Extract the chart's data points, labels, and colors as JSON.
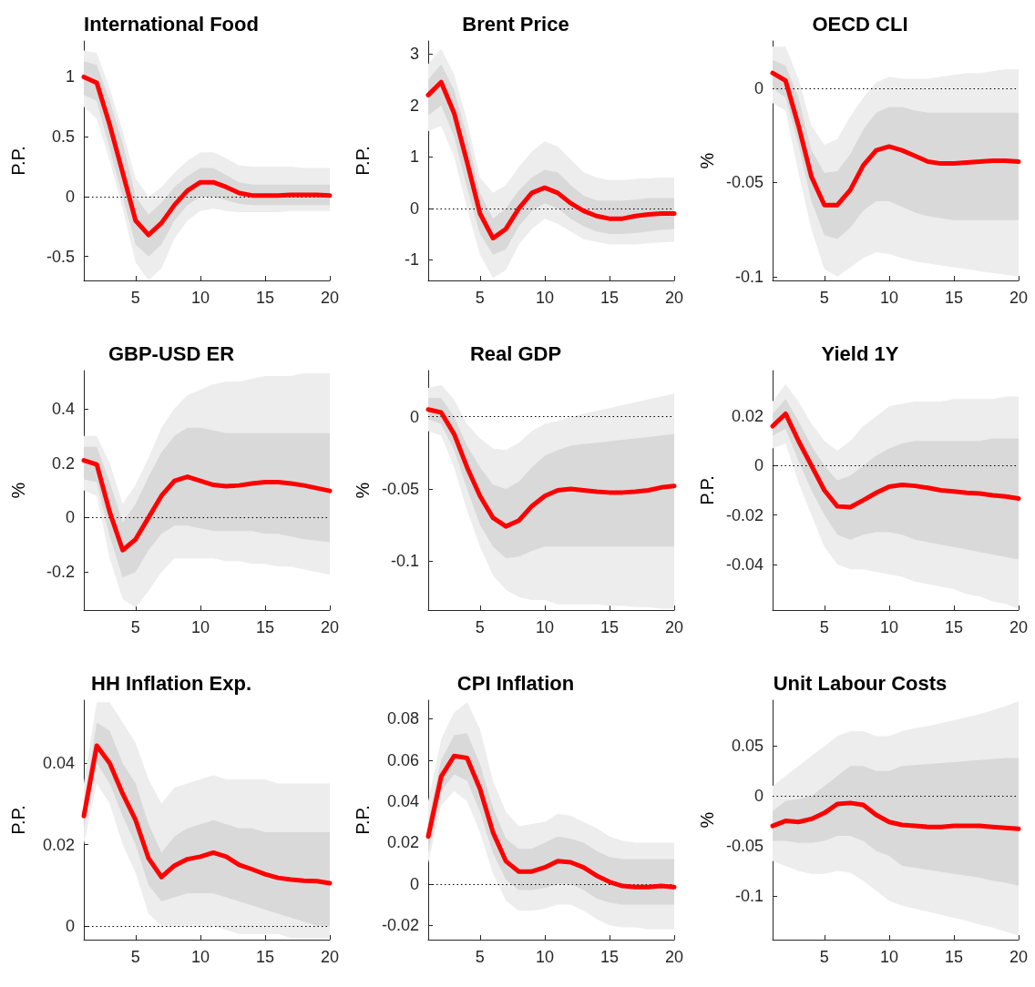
{
  "chart_data": [
    {
      "type": "line",
      "title": "International Food",
      "ylabel": "P.P.",
      "x": [
        1,
        2,
        3,
        4,
        5,
        6,
        7,
        8,
        9,
        10,
        11,
        12,
        13,
        14,
        15,
        16,
        17,
        18,
        19,
        20
      ],
      "xlim": [
        1,
        20
      ],
      "xticks": [
        5,
        10,
        15,
        20
      ],
      "ylim": [
        -0.7,
        1.3
      ],
      "yticks": [
        -0.5,
        0,
        0.5,
        1
      ],
      "grid": false,
      "ref_lines": [
        {
          "axis": "y",
          "value": 0,
          "line_style": "dotted",
          "color": "#000000"
        }
      ],
      "series": [
        {
          "color": "#ededed",
          "values": [
            null,
            null,
            null,
            null,
            null,
            null,
            null,
            null,
            null,
            null,
            null,
            null,
            null,
            null,
            null,
            null,
            null,
            null,
            null,
            null
          ],
          "lower": [
            0.75,
            0.65,
            0.3,
            -0.1,
            -0.55,
            -0.7,
            -0.6,
            -0.35,
            -0.2,
            -0.12,
            -0.1,
            -0.12,
            -0.13,
            -0.13,
            -0.13,
            -0.13,
            -0.12,
            -0.12,
            -0.12,
            -0.12
          ],
          "upper": [
            1.22,
            1.2,
            0.9,
            0.55,
            0.15,
            0.0,
            0.08,
            0.2,
            0.3,
            0.37,
            0.37,
            0.32,
            0.26,
            0.25,
            0.25,
            0.25,
            0.25,
            0.24,
            0.24,
            0.24
          ]
        },
        {
          "color": "#d9d9d9",
          "values": [
            null,
            null,
            null,
            null,
            null,
            null,
            null,
            null,
            null,
            null,
            null,
            null,
            null,
            null,
            null,
            null,
            null,
            null,
            null,
            null
          ],
          "lower": [
            0.85,
            0.8,
            0.4,
            0.0,
            -0.4,
            -0.5,
            -0.4,
            -0.2,
            -0.07,
            0.0,
            0.0,
            -0.03,
            -0.06,
            -0.07,
            -0.07,
            -0.07,
            -0.07,
            -0.07,
            -0.07,
            -0.07
          ],
          "upper": [
            1.13,
            1.1,
            0.8,
            0.45,
            0.0,
            -0.15,
            -0.05,
            0.08,
            0.17,
            0.24,
            0.24,
            0.18,
            0.12,
            0.1,
            0.1,
            0.1,
            0.1,
            0.1,
            0.1,
            0.1
          ]
        },
        {
          "color": "#ff0000",
          "values": [
            1.0,
            0.95,
            0.6,
            0.2,
            -0.2,
            -0.32,
            -0.22,
            -0.07,
            0.05,
            0.12,
            0.12,
            0.08,
            0.03,
            0.01,
            0.01,
            0.01,
            0.015,
            0.015,
            0.015,
            0.01
          ]
        }
      ]
    },
    {
      "type": "line",
      "title": "Brent Price",
      "ylabel": "P.P.",
      "x": [
        1,
        2,
        3,
        4,
        5,
        6,
        7,
        8,
        9,
        10,
        11,
        12,
        13,
        14,
        15,
        16,
        17,
        18,
        19,
        20
      ],
      "xlim": [
        1,
        20
      ],
      "xticks": [
        5,
        10,
        15,
        20
      ],
      "ylim": [
        -1.4,
        3.25
      ],
      "yticks": [
        -1,
        0,
        1,
        2,
        3
      ],
      "grid": false,
      "ref_lines": [
        {
          "axis": "y",
          "value": 0,
          "line_style": "dotted",
          "color": "#000000"
        }
      ],
      "series": [
        {
          "color": "#ededed",
          "values": [
            null,
            null,
            null,
            null,
            null,
            null,
            null,
            null,
            null,
            null,
            null,
            null,
            null,
            null,
            null,
            null,
            null,
            null,
            null,
            null
          ],
          "lower": [
            1.5,
            1.6,
            1.0,
            0.0,
            -0.9,
            -1.35,
            -1.2,
            -0.7,
            -0.4,
            -0.2,
            -0.3,
            -0.45,
            -0.6,
            -0.65,
            -0.7,
            -0.7,
            -0.7,
            -0.68,
            -0.66,
            -0.65
          ],
          "upper": [
            2.8,
            3.1,
            2.6,
            1.7,
            0.6,
            0.3,
            0.45,
            0.8,
            1.1,
            1.3,
            1.2,
            0.95,
            0.7,
            0.6,
            0.55,
            0.55,
            0.57,
            0.58,
            0.6,
            0.6
          ]
        },
        {
          "color": "#d9d9d9",
          "values": [
            null,
            null,
            null,
            null,
            null,
            null,
            null,
            null,
            null,
            null,
            null,
            null,
            null,
            null,
            null,
            null,
            null,
            null,
            null,
            null
          ],
          "lower": [
            1.8,
            2.0,
            1.4,
            0.4,
            -0.5,
            -0.9,
            -0.8,
            -0.35,
            -0.05,
            0.1,
            0.0,
            -0.2,
            -0.35,
            -0.45,
            -0.5,
            -0.5,
            -0.48,
            -0.45,
            -0.42,
            -0.4
          ],
          "upper": [
            2.5,
            2.8,
            2.3,
            1.4,
            0.3,
            -0.2,
            0.0,
            0.35,
            0.6,
            0.75,
            0.7,
            0.45,
            0.25,
            0.15,
            0.15,
            0.15,
            0.17,
            0.2,
            0.2,
            0.2
          ]
        },
        {
          "color": "#ff0000",
          "values": [
            2.2,
            2.45,
            1.85,
            0.9,
            -0.1,
            -0.58,
            -0.4,
            0.0,
            0.3,
            0.4,
            0.3,
            0.1,
            -0.05,
            -0.15,
            -0.2,
            -0.2,
            -0.15,
            -0.12,
            -0.1,
            -0.1
          ]
        }
      ]
    },
    {
      "type": "line",
      "title": "OECD CLI",
      "ylabel": "%",
      "x": [
        1,
        2,
        3,
        4,
        5,
        6,
        7,
        8,
        9,
        10,
        11,
        12,
        13,
        14,
        15,
        16,
        17,
        18,
        19,
        20
      ],
      "xlim": [
        1,
        20
      ],
      "xticks": [
        5,
        10,
        15,
        20
      ],
      "ylim": [
        -0.102,
        0.025
      ],
      "yticks": [
        -0.1,
        -0.05,
        0
      ],
      "grid": false,
      "ref_lines": [
        {
          "axis": "y",
          "value": 0,
          "line_style": "dotted",
          "color": "#000000"
        }
      ],
      "series": [
        {
          "color": "#ededed",
          "values": [
            null,
            null,
            null,
            null,
            null,
            null,
            null,
            null,
            null,
            null,
            null,
            null,
            null,
            null,
            null,
            null,
            null,
            null,
            null,
            null
          ],
          "lower": [
            -0.008,
            -0.012,
            -0.045,
            -0.075,
            -0.096,
            -0.1,
            -0.095,
            -0.09,
            -0.087,
            -0.088,
            -0.09,
            -0.092,
            -0.093,
            -0.094,
            -0.095,
            -0.096,
            -0.097,
            -0.098,
            -0.099,
            -0.1
          ],
          "upper": [
            0.022,
            0.022,
            0.005,
            -0.02,
            -0.03,
            -0.027,
            -0.015,
            -0.005,
            0.003,
            0.006,
            0.005,
            0.005,
            0.005,
            0.006,
            0.007,
            0.008,
            0.008,
            0.009,
            0.01,
            0.01
          ]
        },
        {
          "color": "#d9d9d9",
          "values": [
            null,
            null,
            null,
            null,
            null,
            null,
            null,
            null,
            null,
            null,
            null,
            null,
            null,
            null,
            null,
            null,
            null,
            null,
            null,
            null
          ],
          "lower": [
            0.0,
            -0.005,
            -0.03,
            -0.06,
            -0.078,
            -0.08,
            -0.074,
            -0.065,
            -0.06,
            -0.06,
            -0.063,
            -0.066,
            -0.068,
            -0.069,
            -0.07,
            -0.07,
            -0.07,
            -0.07,
            -0.07,
            -0.07
          ],
          "upper": [
            0.015,
            0.012,
            -0.005,
            -0.033,
            -0.045,
            -0.044,
            -0.035,
            -0.022,
            -0.013,
            -0.01,
            -0.01,
            -0.012,
            -0.013,
            -0.013,
            -0.013,
            -0.013,
            -0.013,
            -0.013,
            -0.013,
            -0.013
          ]
        },
        {
          "color": "#ff0000",
          "values": [
            0.008,
            0.004,
            -0.02,
            -0.047,
            -0.062,
            -0.062,
            -0.054,
            -0.041,
            -0.033,
            -0.031,
            -0.033,
            -0.036,
            -0.039,
            -0.04,
            -0.04,
            -0.0395,
            -0.039,
            -0.0385,
            -0.0385,
            -0.039
          ]
        }
      ]
    },
    {
      "type": "line",
      "title": "GBP-USD ER",
      "ylabel": "%",
      "x": [
        1,
        2,
        3,
        4,
        5,
        6,
        7,
        8,
        9,
        10,
        11,
        12,
        13,
        14,
        15,
        16,
        17,
        18,
        19,
        20
      ],
      "xlim": [
        1,
        20
      ],
      "xticks": [
        5,
        10,
        15,
        20
      ],
      "ylim": [
        -0.34,
        0.54
      ],
      "yticks": [
        -0.2,
        0,
        0.2,
        0.4
      ],
      "grid": false,
      "ref_lines": [
        {
          "axis": "y",
          "value": 0,
          "line_style": "dotted",
          "color": "#000000"
        }
      ],
      "series": [
        {
          "color": "#ededed",
          "values": [
            null,
            null,
            null,
            null,
            null,
            null,
            null,
            null,
            null,
            null,
            null,
            null,
            null,
            null,
            null,
            null,
            null,
            null,
            null,
            null
          ],
          "lower": [
            0.1,
            0.08,
            -0.15,
            -0.3,
            -0.33,
            -0.27,
            -0.2,
            -0.15,
            -0.15,
            -0.15,
            -0.15,
            -0.16,
            -0.16,
            -0.17,
            -0.17,
            -0.18,
            -0.18,
            -0.19,
            -0.2,
            -0.21
          ],
          "upper": [
            0.3,
            0.3,
            0.2,
            0.05,
            0.12,
            0.22,
            0.33,
            0.4,
            0.45,
            0.47,
            0.49,
            0.5,
            0.5,
            0.51,
            0.52,
            0.52,
            0.52,
            0.53,
            0.53,
            0.53
          ]
        },
        {
          "color": "#d9d9d9",
          "values": [
            null,
            null,
            null,
            null,
            null,
            null,
            null,
            null,
            null,
            null,
            null,
            null,
            null,
            null,
            null,
            null,
            null,
            null,
            null,
            null
          ],
          "lower": [
            0.14,
            0.13,
            -0.07,
            -0.22,
            -0.2,
            -0.12,
            -0.06,
            -0.03,
            -0.03,
            -0.04,
            -0.05,
            -0.05,
            -0.05,
            -0.05,
            -0.06,
            -0.06,
            -0.07,
            -0.08,
            -0.085,
            -0.09
          ],
          "upper": [
            0.26,
            0.26,
            0.13,
            -0.02,
            0.05,
            0.15,
            0.24,
            0.3,
            0.33,
            0.33,
            0.32,
            0.31,
            0.31,
            0.31,
            0.31,
            0.31,
            0.31,
            0.31,
            0.31,
            0.31
          ]
        },
        {
          "color": "#ff0000",
          "values": [
            0.21,
            0.195,
            0.02,
            -0.12,
            -0.08,
            0.0,
            0.08,
            0.135,
            0.15,
            0.135,
            0.12,
            0.115,
            0.118,
            0.125,
            0.13,
            0.13,
            0.125,
            0.118,
            0.108,
            0.098
          ]
        }
      ]
    },
    {
      "type": "line",
      "title": "Real GDP",
      "ylabel": "%",
      "x": [
        1,
        2,
        3,
        4,
        5,
        6,
        7,
        8,
        9,
        10,
        11,
        12,
        13,
        14,
        15,
        16,
        17,
        18,
        19,
        20
      ],
      "xlim": [
        1,
        20
      ],
      "xticks": [
        5,
        10,
        15,
        20
      ],
      "ylim": [
        -0.134,
        0.032
      ],
      "yticks": [
        -0.1,
        -0.05,
        0
      ],
      "grid": false,
      "ref_lines": [
        {
          "axis": "y",
          "value": 0,
          "line_style": "dotted",
          "color": "#000000"
        }
      ],
      "series": [
        {
          "color": "#ededed",
          "values": [
            null,
            null,
            null,
            null,
            null,
            null,
            null,
            null,
            null,
            null,
            null,
            null,
            null,
            null,
            null,
            null,
            null,
            null,
            null,
            null
          ],
          "lower": [
            -0.01,
            -0.013,
            -0.035,
            -0.065,
            -0.09,
            -0.11,
            -0.12,
            -0.125,
            -0.127,
            -0.127,
            -0.13,
            -0.13,
            -0.13,
            -0.13,
            -0.131,
            -0.131,
            -0.132,
            -0.132,
            -0.133,
            -0.133
          ],
          "upper": [
            0.02,
            0.022,
            0.012,
            -0.005,
            -0.015,
            -0.022,
            -0.023,
            -0.018,
            -0.01,
            -0.005,
            -0.003,
            0.0,
            0.002,
            0.004,
            0.006,
            0.008,
            0.01,
            0.012,
            0.014,
            0.016
          ]
        },
        {
          "color": "#d9d9d9",
          "values": [
            null,
            null,
            null,
            null,
            null,
            null,
            null,
            null,
            null,
            null,
            null,
            null,
            null,
            null,
            null,
            null,
            null,
            null,
            null,
            null
          ],
          "lower": [
            -0.002,
            -0.005,
            -0.023,
            -0.05,
            -0.075,
            -0.09,
            -0.098,
            -0.097,
            -0.093,
            -0.09,
            -0.09,
            -0.09,
            -0.09,
            -0.09,
            -0.09,
            -0.09,
            -0.09,
            -0.09,
            -0.09,
            -0.09
          ],
          "upper": [
            0.013,
            0.013,
            0.0,
            -0.02,
            -0.035,
            -0.047,
            -0.05,
            -0.045,
            -0.035,
            -0.027,
            -0.023,
            -0.02,
            -0.019,
            -0.018,
            -0.017,
            -0.016,
            -0.015,
            -0.014,
            -0.013,
            -0.012
          ]
        },
        {
          "color": "#ff0000",
          "values": [
            0.005,
            0.003,
            -0.012,
            -0.035,
            -0.055,
            -0.07,
            -0.076,
            -0.072,
            -0.062,
            -0.055,
            -0.051,
            -0.05,
            -0.051,
            -0.052,
            -0.0525,
            -0.0525,
            -0.052,
            -0.051,
            -0.049,
            -0.048
          ]
        }
      ]
    },
    {
      "type": "line",
      "title": "Yield 1Y",
      "ylabel": "P.P.",
      "x": [
        1,
        2,
        3,
        4,
        5,
        6,
        7,
        8,
        9,
        10,
        11,
        12,
        13,
        14,
        15,
        16,
        17,
        18,
        19,
        20
      ],
      "xlim": [
        1,
        20
      ],
      "xticks": [
        5,
        10,
        15,
        20
      ],
      "ylim": [
        -0.0585,
        0.0385
      ],
      "yticks": [
        -0.04,
        -0.02,
        0,
        0.02
      ],
      "grid": false,
      "ref_lines": [
        {
          "axis": "y",
          "value": 0,
          "line_style": "dotted",
          "color": "#000000"
        }
      ],
      "series": [
        {
          "color": "#ededed",
          "values": [
            null,
            null,
            null,
            null,
            null,
            null,
            null,
            null,
            null,
            null,
            null,
            null,
            null,
            null,
            null,
            null,
            null,
            null,
            null,
            null
          ],
          "lower": [
            0.007,
            0.009,
            -0.007,
            -0.02,
            -0.033,
            -0.04,
            -0.042,
            -0.042,
            -0.043,
            -0.044,
            -0.045,
            -0.047,
            -0.048,
            -0.049,
            -0.05,
            -0.052,
            -0.053,
            -0.055,
            -0.056,
            -0.058
          ],
          "upper": [
            0.026,
            0.033,
            0.026,
            0.017,
            0.01,
            0.006,
            0.01,
            0.016,
            0.02,
            0.024,
            0.025,
            0.026,
            0.026,
            0.026,
            0.027,
            0.027,
            0.027,
            0.027,
            0.028,
            0.028
          ]
        },
        {
          "color": "#d9d9d9",
          "values": [
            null,
            null,
            null,
            null,
            null,
            null,
            null,
            null,
            null,
            null,
            null,
            null,
            null,
            null,
            null,
            null,
            null,
            null,
            null,
            null
          ],
          "lower": [
            0.012,
            0.015,
            0.002,
            -0.01,
            -0.02,
            -0.028,
            -0.03,
            -0.028,
            -0.027,
            -0.027,
            -0.028,
            -0.03,
            -0.031,
            -0.032,
            -0.033,
            -0.034,
            -0.035,
            -0.036,
            -0.037,
            -0.038
          ],
          "upper": [
            0.021,
            0.027,
            0.018,
            0.008,
            0.0,
            -0.006,
            -0.004,
            0.0,
            0.004,
            0.007,
            0.009,
            0.01,
            0.01,
            0.01,
            0.01,
            0.01,
            0.01,
            0.011,
            0.011,
            0.011
          ]
        },
        {
          "color": "#ff0000",
          "values": [
            0.016,
            0.021,
            0.01,
            0.0,
            -0.01,
            -0.0165,
            -0.0168,
            -0.014,
            -0.011,
            -0.0085,
            -0.0078,
            -0.0082,
            -0.009,
            -0.01,
            -0.0105,
            -0.011,
            -0.0113,
            -0.012,
            -0.0125,
            -0.0133
          ]
        }
      ]
    },
    {
      "type": "line",
      "title": "HH Inflation Exp.",
      "ylabel": "P.P.",
      "x": [
        1,
        2,
        3,
        4,
        5,
        6,
        7,
        8,
        9,
        10,
        11,
        12,
        13,
        14,
        15,
        16,
        17,
        18,
        19,
        20
      ],
      "xlim": [
        1,
        20
      ],
      "xticks": [
        5,
        10,
        15,
        20
      ],
      "ylim": [
        -0.0034,
        0.0555
      ],
      "yticks": [
        0,
        0.02,
        0.04
      ],
      "grid": false,
      "ref_lines": [
        {
          "axis": "y",
          "value": 0,
          "line_style": "dotted",
          "color": "#000000"
        }
      ],
      "series": [
        {
          "color": "#ededed",
          "values": [
            null,
            null,
            null,
            null,
            null,
            null,
            null,
            null,
            null,
            null,
            null,
            null,
            null,
            null,
            null,
            null,
            null,
            null,
            null,
            null
          ],
          "lower": [
            0.02,
            0.035,
            0.03,
            0.02,
            0.013,
            0.003,
            0.0,
            0.0,
            0.0,
            0.0,
            0.0,
            -0.001,
            -0.002,
            -0.002,
            -0.002,
            -0.002,
            -0.003,
            -0.003,
            -0.003,
            -0.003
          ],
          "upper": [
            0.035,
            0.055,
            0.055,
            0.05,
            0.045,
            0.036,
            0.03,
            0.034,
            0.035,
            0.036,
            0.037,
            0.036,
            0.036,
            0.036,
            0.036,
            0.035,
            0.035,
            0.035,
            0.035,
            0.035
          ]
        },
        {
          "color": "#d9d9d9",
          "values": [
            null,
            null,
            null,
            null,
            null,
            null,
            null,
            null,
            null,
            null,
            null,
            null,
            null,
            null,
            null,
            null,
            null,
            null,
            null,
            null
          ],
          "lower": [
            0.024,
            0.04,
            0.035,
            0.027,
            0.02,
            0.01,
            0.006,
            0.007,
            0.008,
            0.008,
            0.008,
            0.007,
            0.006,
            0.005,
            0.004,
            0.003,
            0.002,
            0.001,
            0.0,
            0.0
          ],
          "upper": [
            0.03,
            0.05,
            0.048,
            0.04,
            0.035,
            0.025,
            0.018,
            0.022,
            0.024,
            0.025,
            0.026,
            0.025,
            0.024,
            0.024,
            0.023,
            0.023,
            0.023,
            0.023,
            0.023,
            0.023
          ]
        },
        {
          "color": "#ff0000",
          "values": [
            0.027,
            0.0443,
            0.04,
            0.0325,
            0.026,
            0.0166,
            0.012,
            0.0148,
            0.0164,
            0.017,
            0.018,
            0.017,
            0.015,
            0.0139,
            0.0127,
            0.0118,
            0.0114,
            0.0111,
            0.011,
            0.0105
          ]
        }
      ]
    },
    {
      "type": "line",
      "title": "CPI Inflation",
      "ylabel": "P.P.",
      "x": [
        1,
        2,
        3,
        4,
        5,
        6,
        7,
        8,
        9,
        10,
        11,
        12,
        13,
        14,
        15,
        16,
        17,
        18,
        19,
        20
      ],
      "xlim": [
        1,
        20
      ],
      "xticks": [
        5,
        10,
        15,
        20
      ],
      "ylim": [
        -0.027,
        0.089
      ],
      "yticks": [
        -0.02,
        0,
        0.02,
        0.04,
        0.06,
        0.08
      ],
      "grid": false,
      "ref_lines": [
        {
          "axis": "y",
          "value": 0,
          "line_style": "dotted",
          "color": "#000000"
        }
      ],
      "series": [
        {
          "color": "#ededed",
          "values": [
            null,
            null,
            null,
            null,
            null,
            null,
            null,
            null,
            null,
            null,
            null,
            null,
            null,
            null,
            null,
            null,
            null,
            null,
            null,
            null
          ],
          "lower": [
            0.01,
            0.038,
            0.045,
            0.04,
            0.025,
            0.005,
            -0.008,
            -0.013,
            -0.013,
            -0.012,
            -0.01,
            -0.01,
            -0.013,
            -0.017,
            -0.02,
            -0.021,
            -0.021,
            -0.022,
            -0.022,
            -0.022
          ],
          "upper": [
            0.04,
            0.07,
            0.083,
            0.088,
            0.075,
            0.05,
            0.035,
            0.028,
            0.029,
            0.03,
            0.034,
            0.033,
            0.03,
            0.027,
            0.023,
            0.021,
            0.02,
            0.02,
            0.02,
            0.02
          ]
        },
        {
          "color": "#d9d9d9",
          "values": [
            null,
            null,
            null,
            null,
            null,
            null,
            null,
            null,
            null,
            null,
            null,
            null,
            null,
            null,
            null,
            null,
            null,
            null,
            null,
            null
          ],
          "lower": [
            0.015,
            0.045,
            0.053,
            0.05,
            0.035,
            0.015,
            0.002,
            -0.003,
            -0.003,
            -0.002,
            0.0,
            0.0,
            -0.003,
            -0.007,
            -0.009,
            -0.01,
            -0.01,
            -0.01,
            -0.01,
            -0.01
          ],
          "upper": [
            0.03,
            0.06,
            0.072,
            0.073,
            0.058,
            0.037,
            0.022,
            0.017,
            0.017,
            0.02,
            0.023,
            0.022,
            0.02,
            0.016,
            0.013,
            0.012,
            0.012,
            0.012,
            0.012,
            0.012
          ]
        },
        {
          "color": "#ff0000",
          "values": [
            0.023,
            0.052,
            0.062,
            0.061,
            0.046,
            0.025,
            0.011,
            0.006,
            0.006,
            0.008,
            0.011,
            0.0105,
            0.008,
            0.004,
            0.001,
            -0.001,
            -0.0015,
            -0.0015,
            -0.001,
            -0.0015
          ]
        }
      ]
    },
    {
      "type": "line",
      "title": "Unit Labour Costs",
      "ylabel": "%",
      "x": [
        1,
        2,
        3,
        4,
        5,
        6,
        7,
        8,
        9,
        10,
        11,
        12,
        13,
        14,
        15,
        16,
        17,
        18,
        19,
        20
      ],
      "xlim": [
        1,
        20
      ],
      "xticks": [
        5,
        10,
        15,
        20
      ],
      "ylim": [
        -0.144,
        0.096
      ],
      "yticks": [
        -0.1,
        -0.05,
        0,
        0.05
      ],
      "grid": false,
      "ref_lines": [
        {
          "axis": "y",
          "value": 0,
          "line_style": "dotted",
          "color": "#000000"
        }
      ],
      "series": [
        {
          "color": "#ededed",
          "values": [
            null,
            null,
            null,
            null,
            null,
            null,
            null,
            null,
            null,
            null,
            null,
            null,
            null,
            null,
            null,
            null,
            null,
            null,
            null,
            null
          ],
          "lower": [
            -0.065,
            -0.07,
            -0.075,
            -0.078,
            -0.078,
            -0.075,
            -0.077,
            -0.085,
            -0.095,
            -0.105,
            -0.11,
            -0.113,
            -0.116,
            -0.119,
            -0.122,
            -0.125,
            -0.129,
            -0.132,
            -0.136,
            -0.14
          ],
          "upper": [
            0.01,
            0.02,
            0.03,
            0.04,
            0.05,
            0.06,
            0.065,
            0.065,
            0.06,
            0.06,
            0.065,
            0.068,
            0.07,
            0.073,
            0.076,
            0.079,
            0.082,
            0.086,
            0.09,
            0.095
          ]
        },
        {
          "color": "#d9d9d9",
          "values": [
            null,
            null,
            null,
            null,
            null,
            null,
            null,
            null,
            null,
            null,
            null,
            null,
            null,
            null,
            null,
            null,
            null,
            null,
            null,
            null
          ],
          "lower": [
            -0.045,
            -0.045,
            -0.047,
            -0.047,
            -0.045,
            -0.04,
            -0.04,
            -0.045,
            -0.055,
            -0.06,
            -0.07,
            -0.072,
            -0.074,
            -0.076,
            -0.078,
            -0.08,
            -0.082,
            -0.085,
            -0.087,
            -0.09
          ],
          "upper": [
            -0.015,
            -0.005,
            -0.003,
            0.0,
            0.01,
            0.02,
            0.03,
            0.03,
            0.025,
            0.025,
            0.03,
            0.031,
            0.032,
            0.033,
            0.034,
            0.035,
            0.036,
            0.037,
            0.038,
            0.038
          ]
        },
        {
          "color": "#ff0000",
          "values": [
            -0.03,
            -0.025,
            -0.026,
            -0.023,
            -0.017,
            -0.008,
            -0.007,
            -0.009,
            -0.019,
            -0.026,
            -0.029,
            -0.03,
            -0.031,
            -0.031,
            -0.03,
            -0.03,
            -0.03,
            -0.031,
            -0.032,
            -0.033
          ]
        }
      ]
    }
  ]
}
